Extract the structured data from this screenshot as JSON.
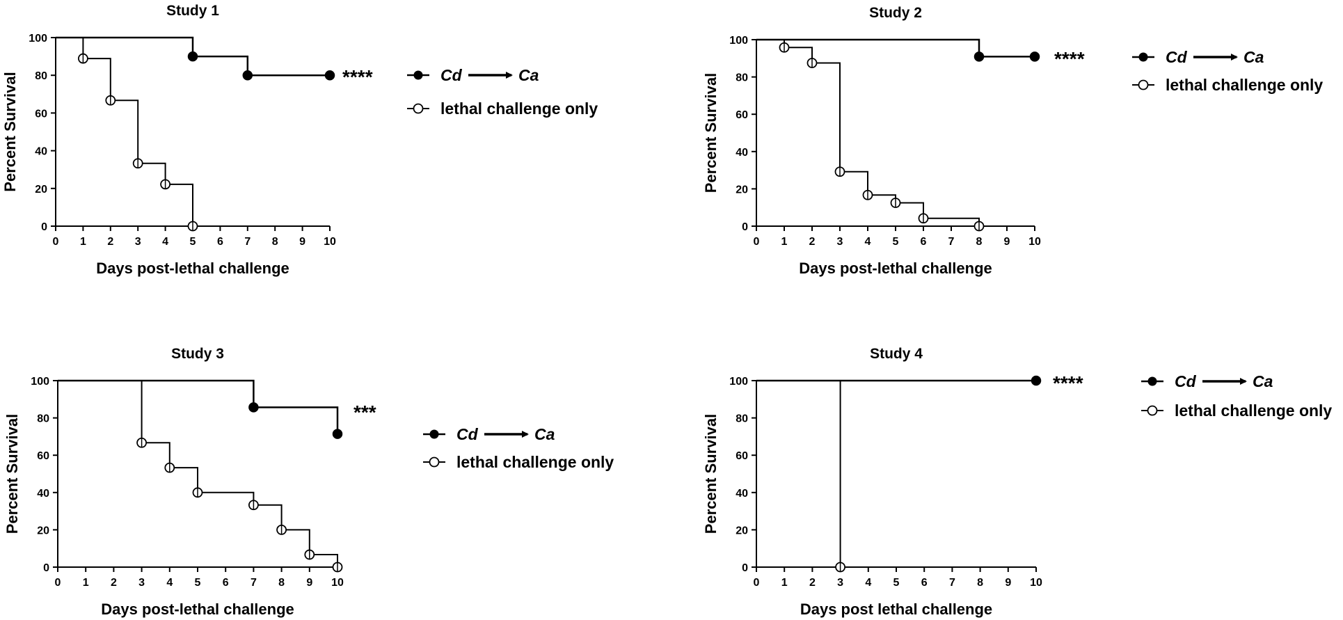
{
  "figure": {
    "legend_arrow_marker": "cd-to-ca-arrow"
  },
  "chart_data": [
    {
      "type": "line",
      "subtype": "kaplan-meier-step",
      "title": "Study 1",
      "xlabel": "Days post-lethal challenge",
      "ylabel": "Percent Survival",
      "xlim": [
        0,
        10
      ],
      "ylim": [
        0,
        100
      ],
      "xticks": [
        "0",
        "1",
        "2",
        "3",
        "4",
        "5",
        "6",
        "7",
        "8",
        "9",
        "10"
      ],
      "yticks": [
        "0",
        "20",
        "40",
        "60",
        "80",
        "100"
      ],
      "grid": false,
      "legend_position": "right",
      "significance": "****",
      "series": [
        {
          "name": "Cd → Ca",
          "legend_from": "Cd",
          "legend_to": "Ca",
          "marker": "filled-circle",
          "steps": [
            [
              0,
              100
            ],
            [
              5,
              90
            ],
            [
              7,
              80
            ],
            [
              10,
              80
            ]
          ],
          "points": [
            [
              5,
              90
            ],
            [
              7,
              80
            ],
            [
              10,
              80
            ]
          ]
        },
        {
          "name": "lethal challenge only",
          "marker": "open-circle",
          "steps": [
            [
              0,
              100
            ],
            [
              1,
              88.9
            ],
            [
              2,
              66.7
            ],
            [
              3,
              33.3
            ],
            [
              4,
              22.2
            ],
            [
              5,
              0
            ]
          ],
          "points": [
            [
              1,
              88.9
            ],
            [
              2,
              66.7
            ],
            [
              3,
              33.3
            ],
            [
              4,
              22.2
            ],
            [
              5,
              0
            ]
          ]
        }
      ]
    },
    {
      "type": "line",
      "subtype": "kaplan-meier-step",
      "title": "Study 2",
      "xlabel": "Days post-lethal challenge",
      "ylabel": "Percent Survival",
      "xlim": [
        0,
        10
      ],
      "ylim": [
        0,
        100
      ],
      "xticks": [
        "0",
        "1",
        "2",
        "3",
        "4",
        "5",
        "6",
        "7",
        "8",
        "9",
        "10"
      ],
      "yticks": [
        "0",
        "20",
        "40",
        "60",
        "80",
        "100"
      ],
      "grid": false,
      "legend_position": "top-right",
      "significance": "****",
      "series": [
        {
          "name": "Cd → Ca",
          "legend_from": "Cd",
          "legend_to": "Ca",
          "marker": "filled-circle",
          "steps": [
            [
              0,
              100
            ],
            [
              8,
              90.9
            ],
            [
              10,
              90.9
            ]
          ],
          "points": [
            [
              8,
              90.9
            ],
            [
              10,
              90.9
            ]
          ]
        },
        {
          "name": "lethal challenge only",
          "marker": "open-circle",
          "steps": [
            [
              0,
              100
            ],
            [
              1,
              95.8
            ],
            [
              2,
              87.5
            ],
            [
              3,
              29.2
            ],
            [
              4,
              16.7
            ],
            [
              5,
              12.5
            ],
            [
              6,
              4.2
            ],
            [
              8,
              0
            ]
          ],
          "points": [
            [
              1,
              95.8
            ],
            [
              2,
              87.5
            ],
            [
              3,
              29.2
            ],
            [
              4,
              16.7
            ],
            [
              5,
              12.5
            ],
            [
              6,
              4.2
            ],
            [
              8,
              0
            ]
          ]
        }
      ]
    },
    {
      "type": "line",
      "subtype": "kaplan-meier-step",
      "title": "Study 3",
      "xlabel": "Days post-lethal challenge",
      "ylabel": "Percent Survival",
      "xlim": [
        0,
        10
      ],
      "ylim": [
        0,
        100
      ],
      "xticks": [
        "0",
        "1",
        "2",
        "3",
        "4",
        "5",
        "6",
        "7",
        "8",
        "9",
        "10"
      ],
      "yticks": [
        "0",
        "20",
        "40",
        "60",
        "80",
        "100"
      ],
      "grid": false,
      "legend_position": "right",
      "significance": "***",
      "series": [
        {
          "name": "Cd → Ca",
          "legend_from": "Cd",
          "legend_to": "Ca",
          "marker": "filled-circle",
          "steps": [
            [
              0,
              100
            ],
            [
              7,
              85.7
            ],
            [
              10,
              71.4
            ]
          ],
          "points": [
            [
              7,
              85.7
            ],
            [
              10,
              71.4
            ]
          ]
        },
        {
          "name": "lethal challenge only",
          "marker": "open-circle",
          "steps": [
            [
              0,
              100
            ],
            [
              3,
              66.7
            ],
            [
              4,
              53.3
            ],
            [
              5,
              40
            ],
            [
              7,
              33.3
            ],
            [
              8,
              20
            ],
            [
              9,
              6.7
            ],
            [
              10,
              0
            ]
          ],
          "points": [
            [
              3,
              66.7
            ],
            [
              4,
              53.3
            ],
            [
              5,
              40
            ],
            [
              7,
              33.3
            ],
            [
              8,
              20
            ],
            [
              9,
              6.7
            ],
            [
              10,
              0
            ]
          ]
        }
      ]
    },
    {
      "type": "line",
      "subtype": "kaplan-meier-step",
      "title": "Study 4",
      "xlabel": "Days post lethal challenge",
      "ylabel": "Percent Survival",
      "xlim": [
        0,
        10
      ],
      "ylim": [
        0,
        100
      ],
      "xticks": [
        "0",
        "1",
        "2",
        "3",
        "4",
        "5",
        "6",
        "7",
        "8",
        "9",
        "10"
      ],
      "yticks": [
        "0",
        "20",
        "40",
        "60",
        "80",
        "100"
      ],
      "grid": false,
      "legend_position": "top-right",
      "significance": "****",
      "series": [
        {
          "name": "Cd → Ca",
          "legend_from": "Cd",
          "legend_to": "Ca",
          "marker": "filled-circle",
          "steps": [
            [
              0,
              100
            ],
            [
              10,
              100
            ]
          ],
          "points": [
            [
              10,
              100
            ]
          ]
        },
        {
          "name": "lethal challenge only",
          "marker": "open-circle",
          "steps": [
            [
              0,
              100
            ],
            [
              3,
              0
            ]
          ],
          "points": [
            [
              3,
              0
            ]
          ]
        }
      ]
    }
  ]
}
